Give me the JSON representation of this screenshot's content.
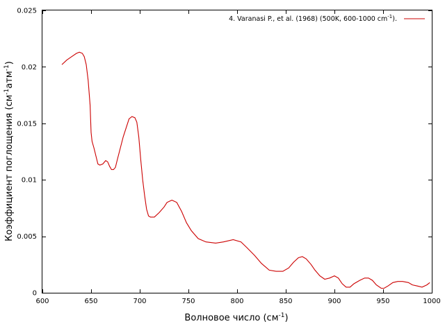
{
  "chart_data": {
    "type": "line",
    "xlabel": {
      "text": "Волновое число (см",
      "sup": "-1",
      "tail": ")"
    },
    "ylabel": {
      "p1": "Коэффициент поглощения (см",
      "s1": "-1",
      "p2": "атм",
      "s2": "-1",
      "p3": ")"
    },
    "xlim": [
      600,
      1000
    ],
    "ylim": [
      0,
      0.025
    ],
    "x_ticks": [
      {
        "value": 600,
        "label": "600"
      },
      {
        "value": 650,
        "label": "650"
      },
      {
        "value": 700,
        "label": "700"
      },
      {
        "value": 750,
        "label": "750"
      },
      {
        "value": 800,
        "label": "800"
      },
      {
        "value": 850,
        "label": "850"
      },
      {
        "value": 900,
        "label": "900"
      },
      {
        "value": 950,
        "label": "950"
      },
      {
        "value": 1000,
        "label": "1000"
      }
    ],
    "y_ticks": [
      {
        "value": 0,
        "label": "0"
      },
      {
        "value": 0.005,
        "label": "0.005"
      },
      {
        "value": 0.01,
        "label": "0.01"
      },
      {
        "value": 0.015,
        "label": "0.015"
      },
      {
        "value": 0.02,
        "label": "0.02"
      },
      {
        "value": 0.025,
        "label": "0.025"
      }
    ],
    "legend_position": "top-right",
    "grid": false,
    "series": [
      {
        "name": "4. Varanasi P., et al. (1968) (500K, 600-1000 cm",
        "name_sup": "-1",
        "name_tail": ").",
        "color": "#cc0000",
        "points": [
          [
            620,
            0.0202
          ],
          [
            625,
            0.0206
          ],
          [
            630,
            0.0209
          ],
          [
            635,
            0.0212
          ],
          [
            638,
            0.0213
          ],
          [
            641,
            0.0212
          ],
          [
            643,
            0.0209
          ],
          [
            645,
            0.0202
          ],
          [
            647,
            0.0188
          ],
          [
            649,
            0.0166
          ],
          [
            650,
            0.0142
          ],
          [
            651,
            0.0134
          ],
          [
            653,
            0.0128
          ],
          [
            655,
            0.0121
          ],
          [
            657,
            0.0114
          ],
          [
            659,
            0.0113
          ],
          [
            662,
            0.0114
          ],
          [
            665,
            0.0117
          ],
          [
            667,
            0.0116
          ],
          [
            669,
            0.0112
          ],
          [
            671,
            0.0109
          ],
          [
            673,
            0.0109
          ],
          [
            675,
            0.0111
          ],
          [
            677,
            0.0118
          ],
          [
            680,
            0.0128
          ],
          [
            683,
            0.0138
          ],
          [
            686,
            0.0146
          ],
          [
            689,
            0.0154
          ],
          [
            692,
            0.0156
          ],
          [
            695,
            0.0155
          ],
          [
            697,
            0.0151
          ],
          [
            699,
            0.0138
          ],
          [
            701,
            0.0118
          ],
          [
            703,
            0.01
          ],
          [
            705,
            0.0086
          ],
          [
            707,
            0.0074
          ],
          [
            709,
            0.0068
          ],
          [
            711,
            0.0067
          ],
          [
            715,
            0.0067
          ],
          [
            720,
            0.0071
          ],
          [
            725,
            0.0076
          ],
          [
            728,
            0.008
          ],
          [
            733,
            0.0082
          ],
          [
            738,
            0.008
          ],
          [
            743,
            0.0072
          ],
          [
            748,
            0.0062
          ],
          [
            753,
            0.0055
          ],
          [
            760,
            0.0048
          ],
          [
            768,
            0.0045
          ],
          [
            778,
            0.0044
          ],
          [
            786,
            0.0045
          ],
          [
            796,
            0.0047
          ],
          [
            804,
            0.0045
          ],
          [
            810,
            0.004
          ],
          [
            818,
            0.0033
          ],
          [
            825,
            0.0026
          ],
          [
            833,
            0.002
          ],
          [
            840,
            0.0019
          ],
          [
            847,
            0.0019
          ],
          [
            853,
            0.0022
          ],
          [
            858,
            0.0027
          ],
          [
            863,
            0.0031
          ],
          [
            867,
            0.0032
          ],
          [
            871,
            0.003
          ],
          [
            876,
            0.0025
          ],
          [
            880,
            0.002
          ],
          [
            885,
            0.0015
          ],
          [
            890,
            0.0012
          ],
          [
            895,
            0.0013
          ],
          [
            900,
            0.0015
          ],
          [
            904,
            0.0013
          ],
          [
            908,
            0.0008
          ],
          [
            912,
            0.0005
          ],
          [
            916,
            0.0005
          ],
          [
            920,
            0.0008
          ],
          [
            926,
            0.0011
          ],
          [
            931,
            0.0013
          ],
          [
            935,
            0.0013
          ],
          [
            939,
            0.0011
          ],
          [
            943,
            0.0007
          ],
          [
            948,
            0.0004
          ],
          [
            951,
            0.0004
          ],
          [
            955,
            0.0006
          ],
          [
            960,
            0.0009
          ],
          [
            965,
            0.001
          ],
          [
            970,
            0.001
          ],
          [
            976,
            0.0009
          ],
          [
            980,
            0.0007
          ],
          [
            985,
            0.0006
          ],
          [
            990,
            0.0005
          ],
          [
            995,
            0.0007
          ],
          [
            998,
            0.0009
          ]
        ]
      }
    ]
  }
}
